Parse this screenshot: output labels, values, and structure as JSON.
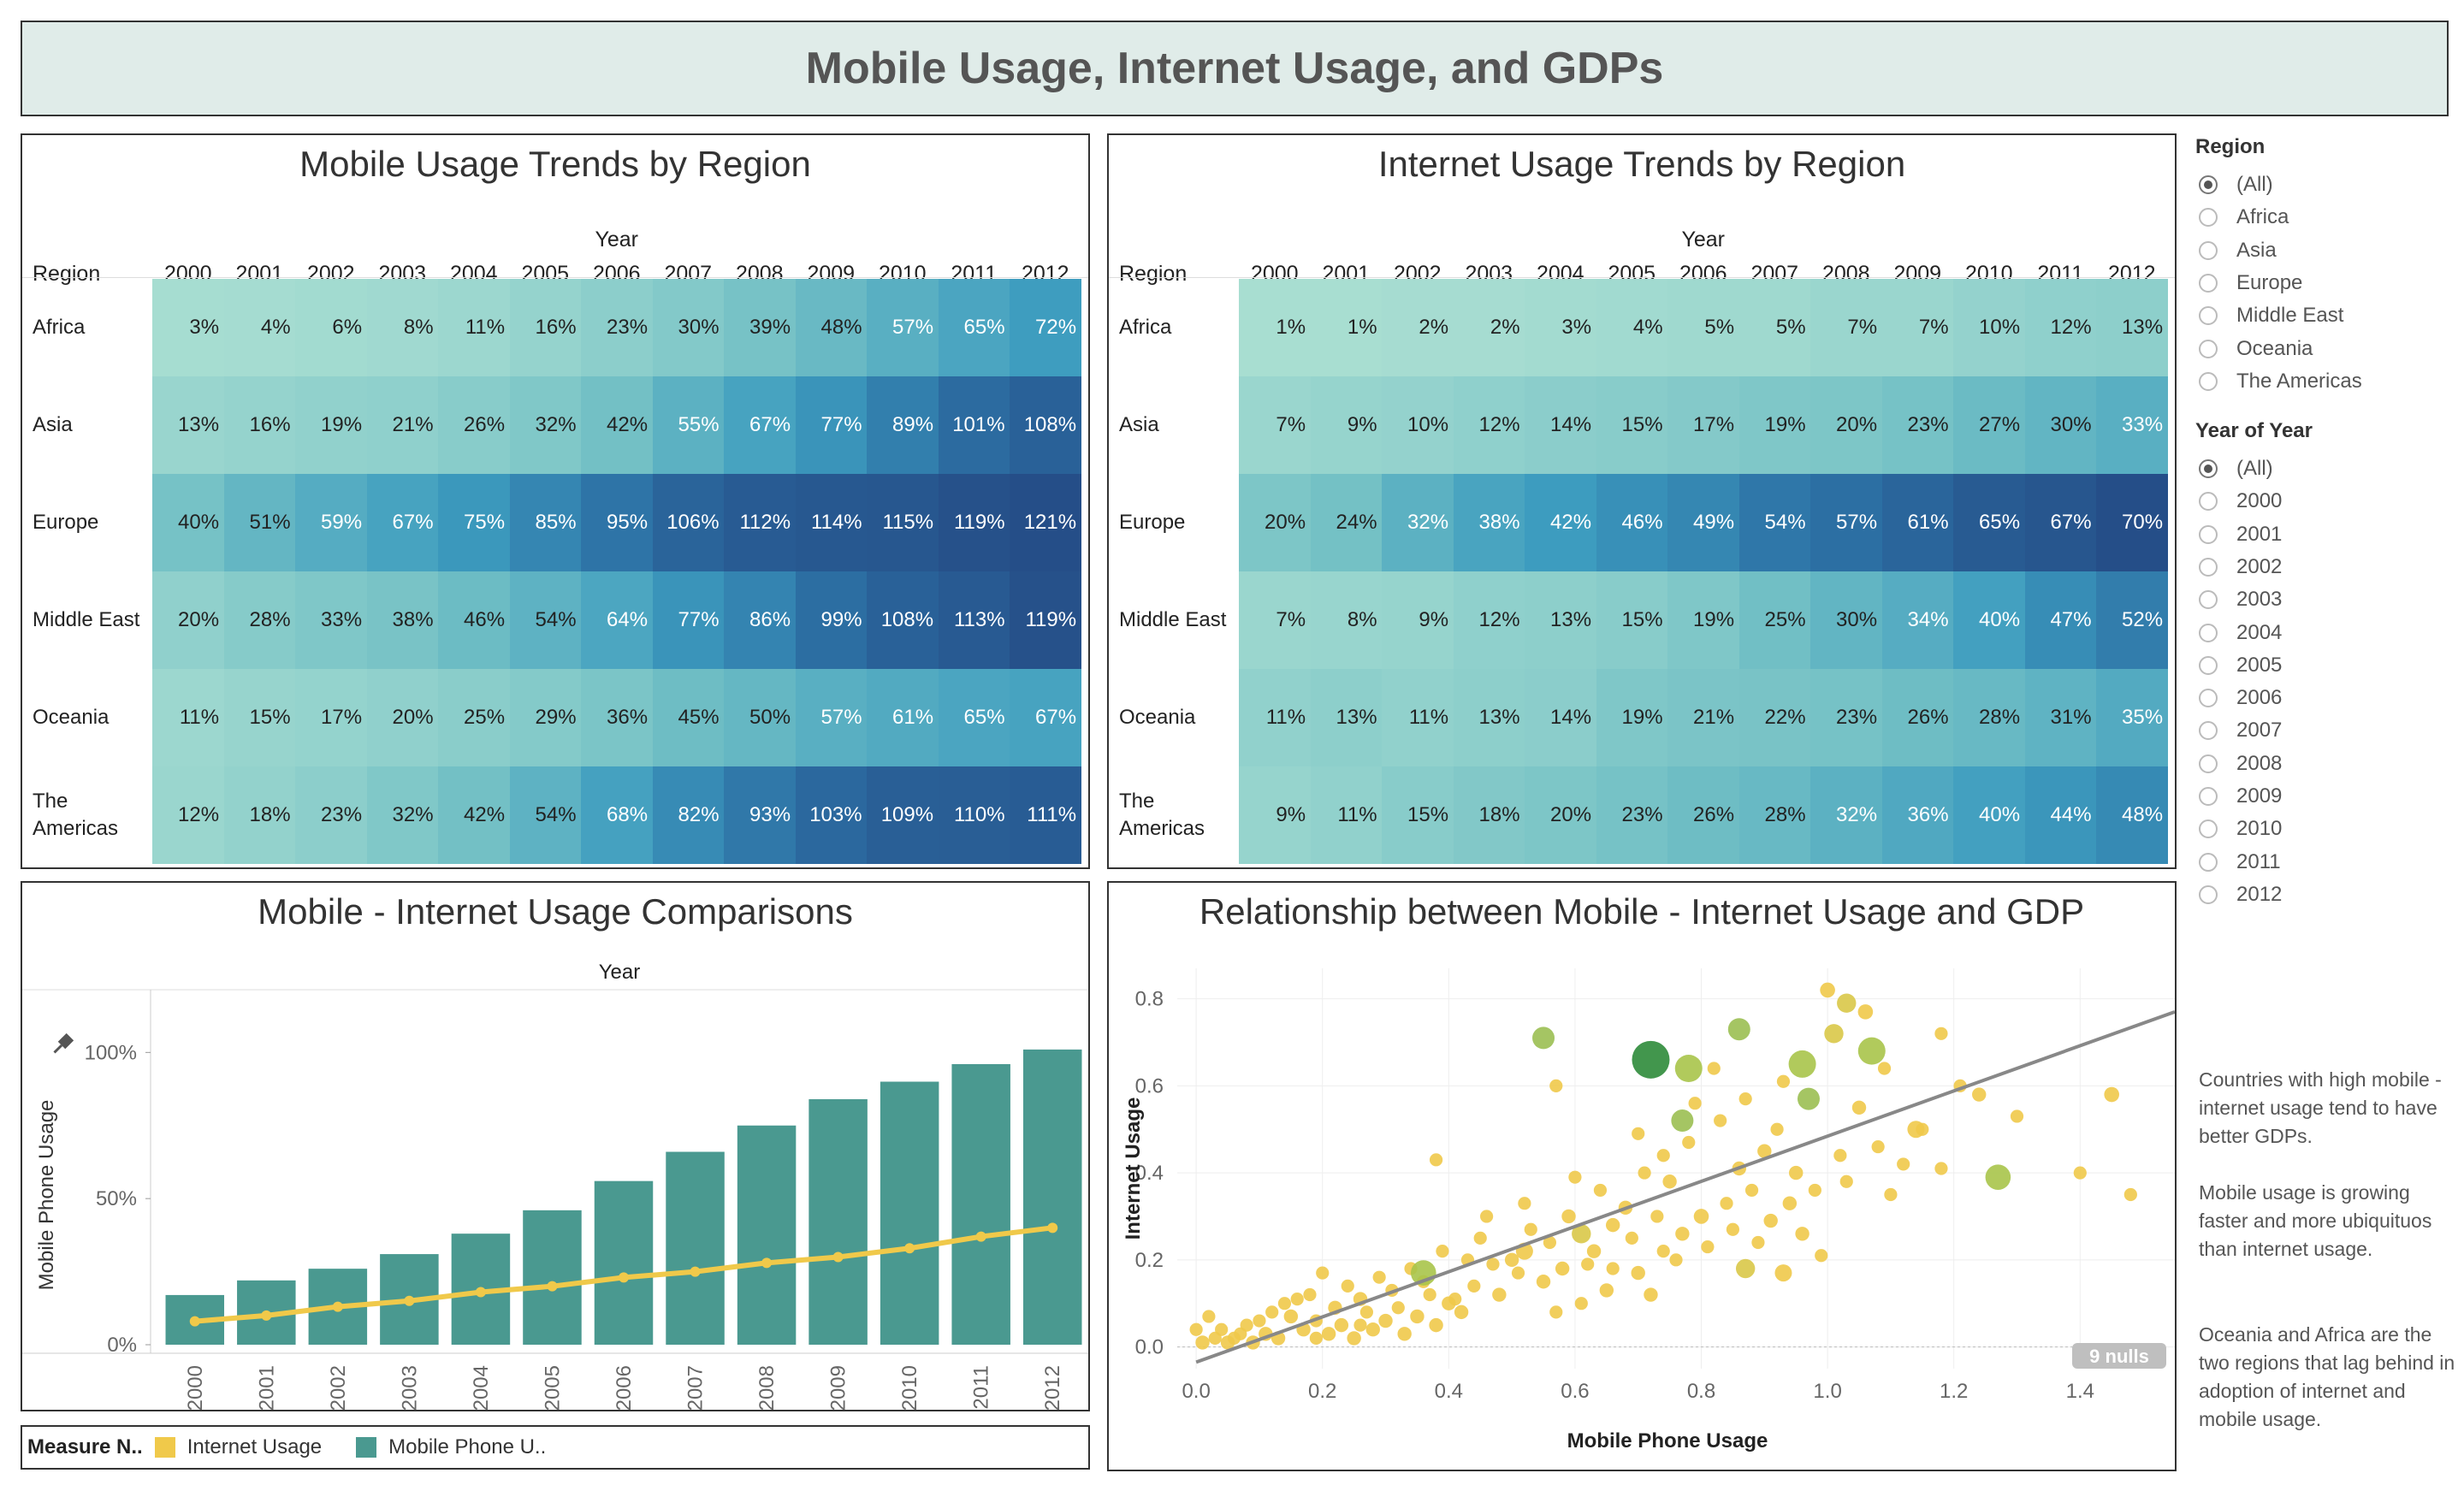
{
  "dashboard_title": "Mobile Usage, Internet Usage, and GDPs",
  "mobile_heatmap": {
    "title": "Mobile Usage Trends by Region",
    "column_header": "Year",
    "row_header": "Region"
  },
  "internet_heatmap": {
    "title": "Internet Usage Trends by Region",
    "column_header": "Year",
    "row_header": "Region"
  },
  "bar_chart_panel": {
    "title": "Mobile - Internet Usage Comparisons",
    "column_header": "Year"
  },
  "scatter_panel": {
    "title": "Relationship between Mobile - Internet Usage and GDP",
    "nulls_badge": "9 nulls"
  },
  "legend": {
    "title": "Measure N..",
    "items": [
      {
        "label": "Internet Usage",
        "color": "#f0c94a"
      },
      {
        "label": "Mobile Phone U..",
        "color": "#4a9990"
      }
    ]
  },
  "filters": {
    "region": {
      "label": "Region",
      "options": [
        "(All)",
        "Africa",
        "Asia",
        "Europe",
        "Middle East",
        "Oceania",
        "The Americas"
      ],
      "selected": "(All)"
    },
    "year": {
      "label": "Year of Year",
      "options": [
        "(All)",
        "2000",
        "2001",
        "2002",
        "2003",
        "2004",
        "2005",
        "2006",
        "2007",
        "2008",
        "2009",
        "2010",
        "2011",
        "2012"
      ],
      "selected": "(All)"
    }
  },
  "notes": [
    "Countries with high mobile - internet usage tend to have better GDPs.",
    "Mobile usage is growing faster and more ubiquituos than internet usage.",
    "Oceania and Africa are the two regions that lag behind in adoption of internet and mobile usage."
  ],
  "chart_data": [
    {
      "type": "heatmap",
      "title": "Mobile Usage Trends by Region",
      "x": [
        "2000",
        "2001",
        "2002",
        "2003",
        "2004",
        "2005",
        "2006",
        "2007",
        "2008",
        "2009",
        "2010",
        "2011",
        "2012"
      ],
      "y": [
        "Africa",
        "Asia",
        "Europe",
        "Middle East",
        "Oceania",
        "The Americas"
      ],
      "y_display": [
        [
          "Africa"
        ],
        [
          "Asia"
        ],
        [
          "Europe"
        ],
        [
          "Middle East"
        ],
        [
          "Oceania"
        ],
        [
          "The",
          "Americas"
        ]
      ],
      "values": [
        [
          3,
          4,
          6,
          8,
          11,
          16,
          23,
          30,
          39,
          48,
          57,
          65,
          72
        ],
        [
          13,
          16,
          19,
          21,
          26,
          32,
          42,
          55,
          67,
          77,
          89,
          101,
          108
        ],
        [
          40,
          51,
          59,
          67,
          75,
          85,
          95,
          106,
          112,
          114,
          115,
          119,
          121
        ],
        [
          20,
          28,
          33,
          38,
          46,
          54,
          64,
          77,
          86,
          99,
          108,
          113,
          119
        ],
        [
          11,
          15,
          17,
          20,
          25,
          29,
          36,
          45,
          50,
          57,
          61,
          65,
          67
        ],
        [
          12,
          18,
          23,
          32,
          42,
          54,
          68,
          82,
          93,
          103,
          109,
          110,
          111
        ]
      ],
      "unit": "%"
    },
    {
      "type": "heatmap",
      "title": "Internet Usage Trends by Region",
      "x": [
        "2000",
        "2001",
        "2002",
        "2003",
        "2004",
        "2005",
        "2006",
        "2007",
        "2008",
        "2009",
        "2010",
        "2011",
        "2012"
      ],
      "y": [
        "Africa",
        "Asia",
        "Europe",
        "Middle East",
        "Oceania",
        "The Americas"
      ],
      "y_display": [
        [
          "Africa"
        ],
        [
          "Asia"
        ],
        [
          "Europe"
        ],
        [
          "Middle East"
        ],
        [
          "Oceania"
        ],
        [
          "The",
          "Americas"
        ]
      ],
      "values": [
        [
          1,
          1,
          2,
          2,
          3,
          4,
          5,
          5,
          7,
          7,
          10,
          12,
          13
        ],
        [
          7,
          9,
          10,
          12,
          14,
          15,
          17,
          19,
          20,
          23,
          27,
          30,
          33
        ],
        [
          20,
          24,
          32,
          38,
          42,
          46,
          49,
          54,
          57,
          61,
          65,
          67,
          70
        ],
        [
          7,
          8,
          9,
          12,
          13,
          15,
          19,
          25,
          30,
          34,
          40,
          47,
          52
        ],
        [
          11,
          13,
          11,
          13,
          14,
          19,
          21,
          22,
          23,
          26,
          28,
          31,
          35
        ],
        [
          9,
          11,
          15,
          18,
          20,
          23,
          26,
          28,
          32,
          36,
          40,
          44,
          48
        ]
      ],
      "unit": "%"
    },
    {
      "type": "bar",
      "title": "Mobile - Internet Usage Comparisons",
      "categories": [
        "2000",
        "2001",
        "2002",
        "2003",
        "2004",
        "2005",
        "2006",
        "2007",
        "2008",
        "2009",
        "2010",
        "2011",
        "2012"
      ],
      "ylabel": "Mobile Phone Usage",
      "yticks": [
        "0%",
        "50%",
        "100%"
      ],
      "ylim": [
        0,
        1.2
      ],
      "series": [
        {
          "name": "Mobile Phone U..",
          "kind": "bar",
          "color": "#4a9990",
          "values": [
            0.17,
            0.22,
            0.26,
            0.31,
            0.38,
            0.46,
            0.56,
            0.66,
            0.75,
            0.84,
            0.9,
            0.96,
            1.01
          ]
        },
        {
          "name": "Internet Usage",
          "kind": "line",
          "color": "#f0c94a",
          "values": [
            0.08,
            0.1,
            0.13,
            0.15,
            0.18,
            0.2,
            0.23,
            0.25,
            0.28,
            0.3,
            0.33,
            0.37,
            0.4
          ]
        }
      ]
    },
    {
      "type": "scatter",
      "title": "Relationship between Mobile - Internet Usage and GDP",
      "xlabel": "Mobile Phone Usage",
      "ylabel": "Internet Usage",
      "xlim": [
        -0.03,
        1.55
      ],
      "ylim": [
        -0.05,
        0.87
      ],
      "xticks": [
        "0.0",
        "0.2",
        "0.4",
        "0.6",
        "0.8",
        "1.0",
        "1.2",
        "1.4"
      ],
      "yticks": [
        "0.0",
        "0.2",
        "0.4",
        "0.6",
        "0.8"
      ],
      "trend": {
        "x1": 0.0,
        "y1": -0.035,
        "x2": 1.55,
        "y2": 0.77
      },
      "points": [
        [
          0.72,
          0.66,
          3
        ],
        [
          0.78,
          0.64,
          2
        ],
        [
          0.96,
          0.65,
          2
        ],
        [
          1.07,
          0.68,
          2
        ],
        [
          0.55,
          0.71,
          1.5
        ],
        [
          0.86,
          0.73,
          1.5
        ],
        [
          0.97,
          0.57,
          1.5
        ],
        [
          0.77,
          0.52,
          1.5
        ],
        [
          1.27,
          0.39,
          1.8
        ],
        [
          0.36,
          0.17,
          1.8
        ],
        [
          1.01,
          0.72,
          1.2
        ],
        [
          1.03,
          0.79,
          1.2
        ],
        [
          1.0,
          0.82,
          0.8
        ],
        [
          1.06,
          0.77,
          0.8
        ],
        [
          0.61,
          0.26,
          1.2
        ],
        [
          0.52,
          0.22,
          1.0
        ],
        [
          0.87,
          0.18,
          1.2
        ],
        [
          0.93,
          0.17,
          1.0
        ],
        [
          1.14,
          0.5,
          1.0
        ],
        [
          1.24,
          0.58,
          0.7
        ],
        [
          1.45,
          0.58,
          0.8
        ],
        [
          1.3,
          0.53,
          0.6
        ],
        [
          1.18,
          0.72,
          0.6
        ],
        [
          1.4,
          0.4,
          0.6
        ],
        [
          1.48,
          0.35,
          0.6
        ],
        [
          1.18,
          0.41,
          0.6
        ],
        [
          0.38,
          0.43,
          0.6
        ],
        [
          0.57,
          0.6,
          0.6
        ],
        [
          0.82,
          0.64,
          0.6
        ],
        [
          0.7,
          0.49,
          0.6
        ],
        [
          0.9,
          0.45,
          0.7
        ],
        [
          0.95,
          0.4,
          0.7
        ],
        [
          1.05,
          0.55,
          0.7
        ],
        [
          0.86,
          0.41,
          0.7
        ],
        [
          0.75,
          0.38,
          0.7
        ],
        [
          0.8,
          0.3,
          0.8
        ],
        [
          0.68,
          0.32,
          0.7
        ],
        [
          0.66,
          0.28,
          0.7
        ],
        [
          0.63,
          0.22,
          0.7
        ],
        [
          0.58,
          0.18,
          0.7
        ],
        [
          0.55,
          0.15,
          0.7
        ],
        [
          0.5,
          0.2,
          0.7
        ],
        [
          0.48,
          0.12,
          0.7
        ],
        [
          0.45,
          0.25,
          0.6
        ],
        [
          0.42,
          0.08,
          0.7
        ],
        [
          0.4,
          0.1,
          0.7
        ],
        [
          0.38,
          0.05,
          0.7
        ],
        [
          0.35,
          0.07,
          0.7
        ],
        [
          0.33,
          0.03,
          0.7
        ],
        [
          0.3,
          0.06,
          0.7
        ],
        [
          0.28,
          0.04,
          0.7
        ],
        [
          0.27,
          0.08,
          0.6
        ],
        [
          0.25,
          0.02,
          0.7
        ],
        [
          0.23,
          0.05,
          0.7
        ],
        [
          0.21,
          0.03,
          0.7
        ],
        [
          0.19,
          0.06,
          0.6
        ],
        [
          0.17,
          0.04,
          0.7
        ],
        [
          0.15,
          0.07,
          0.7
        ],
        [
          0.13,
          0.02,
          0.7
        ],
        [
          0.11,
          0.03,
          0.7
        ],
        [
          0.09,
          0.01,
          0.7
        ],
        [
          0.07,
          0.03,
          0.6
        ],
        [
          0.05,
          0.01,
          0.7
        ],
        [
          0.03,
          0.02,
          0.6
        ],
        [
          0.01,
          0.01,
          0.7
        ],
        [
          0.02,
          0.07,
          0.6
        ],
        [
          0.14,
          0.1,
          0.6
        ],
        [
          0.18,
          0.12,
          0.6
        ],
        [
          0.22,
          0.09,
          0.7
        ],
        [
          0.26,
          0.11,
          0.7
        ],
        [
          0.31,
          0.13,
          0.6
        ],
        [
          0.36,
          0.15,
          0.6
        ],
        [
          0.44,
          0.14,
          0.6
        ],
        [
          0.47,
          0.19,
          0.6
        ],
        [
          0.53,
          0.27,
          0.6
        ],
        [
          0.59,
          0.3,
          0.7
        ],
        [
          0.62,
          0.19,
          0.6
        ],
        [
          0.65,
          0.13,
          0.7
        ],
        [
          0.7,
          0.17,
          0.7
        ],
        [
          0.72,
          0.12,
          0.7
        ],
        [
          0.74,
          0.22,
          0.6
        ],
        [
          0.77,
          0.26,
          0.7
        ],
        [
          0.81,
          0.23,
          0.6
        ],
        [
          0.84,
          0.33,
          0.6
        ],
        [
          0.88,
          0.36,
          0.6
        ],
        [
          0.91,
          0.29,
          0.7
        ],
        [
          0.94,
          0.33,
          0.7
        ],
        [
          0.98,
          0.36,
          0.6
        ],
        [
          1.02,
          0.44,
          0.6
        ],
        [
          1.08,
          0.46,
          0.6
        ],
        [
          1.1,
          0.35,
          0.6
        ],
        [
          1.12,
          0.42,
          0.6
        ],
        [
          0.99,
          0.21,
          0.6
        ],
        [
          0.96,
          0.26,
          0.7
        ],
        [
          0.83,
          0.52,
          0.6
        ],
        [
          0.79,
          0.56,
          0.6
        ],
        [
          0.74,
          0.44,
          0.6
        ],
        [
          0.6,
          0.39,
          0.6
        ],
        [
          0.52,
          0.33,
          0.6
        ],
        [
          0.46,
          0.3,
          0.6
        ],
        [
          0.43,
          0.2,
          0.6
        ],
        [
          0.39,
          0.22,
          0.6
        ],
        [
          0.34,
          0.18,
          0.6
        ],
        [
          0.29,
          0.16,
          0.6
        ],
        [
          0.24,
          0.14,
          0.6
        ],
        [
          0.2,
          0.17,
          0.6
        ],
        [
          0.16,
          0.11,
          0.6
        ],
        [
          0.12,
          0.08,
          0.6
        ],
        [
          0.08,
          0.05,
          0.6
        ],
        [
          0.04,
          0.04,
          0.6
        ],
        [
          0.1,
          0.06,
          0.6
        ],
        [
          0.06,
          0.02,
          0.6
        ],
        [
          0.0,
          0.04,
          0.6
        ],
        [
          0.61,
          0.1,
          0.6
        ],
        [
          0.57,
          0.08,
          0.6
        ],
        [
          0.66,
          0.18,
          0.6
        ],
        [
          0.69,
          0.25,
          0.6
        ],
        [
          0.73,
          0.3,
          0.6
        ],
        [
          0.76,
          0.2,
          0.6
        ],
        [
          0.85,
          0.27,
          0.6
        ],
        [
          0.89,
          0.24,
          0.6
        ],
        [
          1.15,
          0.5,
          0.6
        ],
        [
          1.21,
          0.6,
          0.6
        ],
        [
          0.92,
          0.5,
          0.6
        ],
        [
          0.87,
          0.57,
          0.6
        ],
        [
          0.56,
          0.24,
          0.6
        ],
        [
          0.51,
          0.17,
          0.6
        ],
        [
          0.41,
          0.11,
          0.6
        ],
        [
          0.37,
          0.12,
          0.6
        ],
        [
          0.32,
          0.09,
          0.6
        ],
        [
          0.26,
          0.05,
          0.6
        ],
        [
          0.19,
          0.02,
          0.6
        ],
        [
          0.64,
          0.36,
          0.6
        ],
        [
          0.71,
          0.4,
          0.6
        ],
        [
          0.78,
          0.47,
          0.6
        ],
        [
          1.03,
          0.38,
          0.6
        ],
        [
          0.93,
          0.61,
          0.6
        ],
        [
          1.09,
          0.64,
          0.6
        ]
      ]
    }
  ]
}
